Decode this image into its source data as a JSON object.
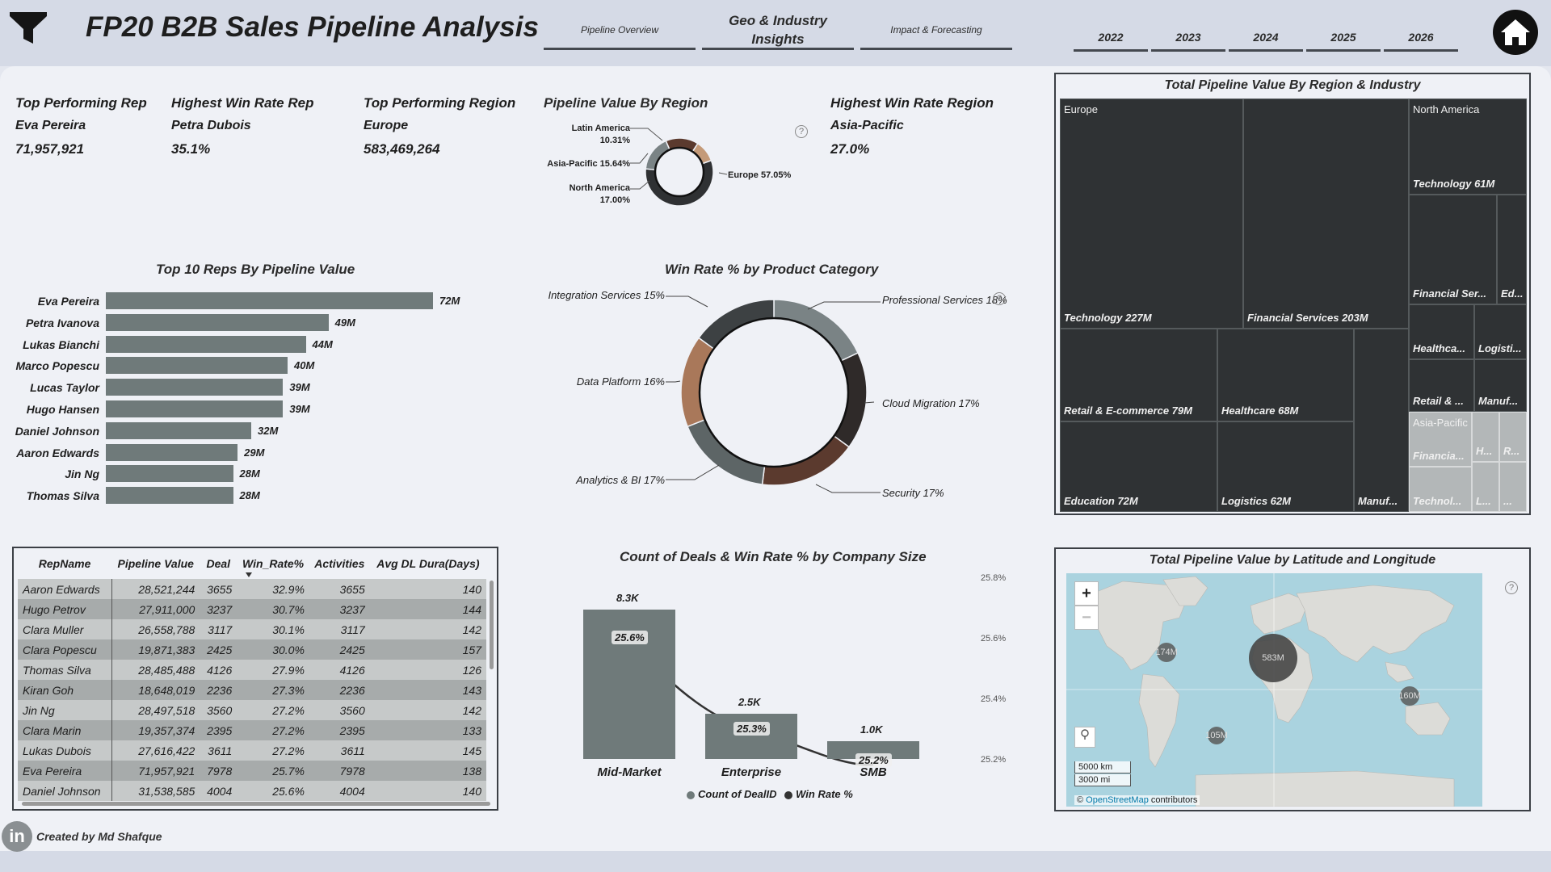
{
  "header": {
    "title": "FP20 B2B Sales Pipeline Analysis",
    "nav_tabs": [
      {
        "label": "Pipeline Overview"
      },
      {
        "label": "Geo & Industry Insights"
      },
      {
        "label": "Impact & Forecasting"
      }
    ],
    "years": [
      "2022",
      "2023",
      "2024",
      "2025",
      "2026"
    ]
  },
  "kpis": {
    "top_rep": {
      "title": "Top Performing Rep",
      "name": "Eva Pereira",
      "value": "71,957,921"
    },
    "win_rep": {
      "title": "Highest Win Rate Rep",
      "name": "Petra Dubois",
      "value": "35.1%"
    },
    "top_region": {
      "title": "Top Performing Region",
      "name": "Europe",
      "value": "583,469,264"
    },
    "win_region": {
      "title": "Highest Win Rate Region",
      "name": "Asia-Pacific",
      "value": "27.0%"
    }
  },
  "region_donut": {
    "title": "Pipeline Value By Region",
    "slices": [
      {
        "label": "Europe 57.05%",
        "value": 57.05,
        "color": "#2f3133"
      },
      {
        "label": "North America\n17.00%",
        "value": 17.0,
        "color": "#7a8385"
      },
      {
        "label": "Asia-Pacific 15.64%",
        "value": 15.64,
        "color": "#5b3a2e"
      },
      {
        "label": "Latin America\n10.31%",
        "value": 10.31,
        "color": "#c49a78"
      }
    ]
  },
  "top_reps_title": "Top 10 Reps By Pipeline Value",
  "chart_data": [
    {
      "type": "bar",
      "orientation": "horizontal",
      "title": "Top 10 Reps By Pipeline Value",
      "categories": [
        "Eva Pereira",
        "Petra Ivanova",
        "Lukas Bianchi",
        "Marco Popescu",
        "Lucas Taylor",
        "Hugo Hansen",
        "Daniel Johnson",
        "Aaron Edwards",
        "Jin Ng",
        "Thomas Silva"
      ],
      "values": [
        72,
        49,
        44,
        40,
        39,
        39,
        32,
        29,
        28,
        28
      ],
      "labels": [
        "72M",
        "49M",
        "44M",
        "40M",
        "39M",
        "39M",
        "32M",
        "29M",
        "28M",
        "28M"
      ]
    },
    {
      "type": "pie",
      "title": "Win Rate % by Product Category",
      "slices": [
        {
          "label": "Professional Services 18%",
          "value": 18,
          "color": "#7a8385"
        },
        {
          "label": "Cloud Migration 17%",
          "value": 17,
          "color": "#2f2a29"
        },
        {
          "label": "Security 17%",
          "value": 17,
          "color": "#5b3a2e"
        },
        {
          "label": "Analytics & BI 17%",
          "value": 17,
          "color": "#5d6566"
        },
        {
          "label": "Data Platform 16%",
          "value": 16,
          "color": "#a9785a"
        },
        {
          "label": "Integration Services 15%",
          "value": 15,
          "color": "#3d4143"
        }
      ]
    },
    {
      "type": "bar",
      "title": "Count of Deals & Win Rate % by Company Size",
      "categories": [
        "Mid-Market",
        "Enterprise",
        "SMB"
      ],
      "series": [
        {
          "name": "Count of DealID",
          "values": [
            8300,
            2500,
            1000
          ],
          "labels": [
            "8.3K",
            "2.5K",
            "1.0K"
          ],
          "color": "#6f7a7a"
        },
        {
          "name": "Win Rate %",
          "type": "line",
          "values": [
            25.6,
            25.3,
            25.2
          ],
          "labels": [
            "25.6%",
            "25.3%",
            "25.2%"
          ],
          "color": "#333333"
        }
      ],
      "y2_ticks": [
        "25.8%",
        "25.6%",
        "25.4%",
        "25.2%"
      ],
      "legend": "bottom"
    }
  ],
  "product_title": "Win Rate % by Product Category",
  "company_title": "Count of Deals & Win Rate % by Company Size",
  "company_legend": [
    "Count of DealID",
    "Win Rate %"
  ],
  "table": {
    "columns": [
      "RepName",
      "Pipeline Value",
      "Deal",
      "Win_Rate%",
      "Activities",
      "Avg DL Dura(Days)"
    ],
    "rows": [
      [
        "Aaron Edwards",
        "28,521,244",
        "3655",
        "32.9%",
        "3655",
        "140"
      ],
      [
        "Hugo Petrov",
        "27,911,000",
        "3237",
        "30.7%",
        "3237",
        "144"
      ],
      [
        "Clara Muller",
        "26,558,788",
        "3117",
        "30.1%",
        "3117",
        "142"
      ],
      [
        "Clara Popescu",
        "19,871,383",
        "2425",
        "30.0%",
        "2425",
        "157"
      ],
      [
        "Thomas Silva",
        "28,485,488",
        "4126",
        "27.9%",
        "4126",
        "126"
      ],
      [
        "Kiran Goh",
        "18,648,019",
        "2236",
        "27.3%",
        "2236",
        "143"
      ],
      [
        "Jin Ng",
        "28,497,518",
        "3560",
        "27.2%",
        "3560",
        "142"
      ],
      [
        "Clara Marin",
        "19,357,374",
        "2395",
        "27.2%",
        "2395",
        "133"
      ],
      [
        "Lukas Dubois",
        "27,616,422",
        "3611",
        "27.2%",
        "3611",
        "145"
      ],
      [
        "Eva Pereira",
        "71,957,921",
        "7978",
        "25.7%",
        "7978",
        "138"
      ],
      [
        "Daniel Johnson",
        "31,538,585",
        "4004",
        "25.6%",
        "4004",
        "140"
      ]
    ]
  },
  "treemap": {
    "title": "Total Pipeline Value By Region & Industry",
    "regions": [
      "Europe",
      "North America",
      "Asia-Pacific"
    ],
    "cells": [
      {
        "label": "Technology 227M"
      },
      {
        "label": "Financial Services 203M"
      },
      {
        "label": "Retail & E-commerce 79M"
      },
      {
        "label": "Healthcare 68M"
      },
      {
        "label": "Education 72M"
      },
      {
        "label": "Logistics 62M"
      },
      {
        "label": "Manuf..."
      },
      {
        "label": "Technology 61M"
      },
      {
        "label": "Financial Ser..."
      },
      {
        "label": "Ed..."
      },
      {
        "label": "Healthca..."
      },
      {
        "label": "Logisti..."
      },
      {
        "label": "Retail & ..."
      },
      {
        "label": "Manuf..."
      },
      {
        "label": "Financia..."
      },
      {
        "label": "Technol..."
      },
      {
        "label": "H..."
      },
      {
        "label": "R..."
      },
      {
        "label": "L..."
      },
      {
        "label": "..."
      }
    ]
  },
  "map": {
    "title": "Total Pipeline Value by Latitude and Longitude",
    "bubbles": [
      {
        "label": "174M"
      },
      {
        "label": "583M"
      },
      {
        "label": "160M"
      },
      {
        "label": "105M"
      }
    ],
    "scale_km": "5000 km",
    "scale_mi": "3000 mi",
    "attribution_prefix": "©",
    "attribution_link": "OpenStreetMap",
    "attribution_suffix": "contributors"
  },
  "footer": {
    "credit": "Created by Md Shafque",
    "linkedin": "in"
  },
  "colors": {
    "bar": "#6f7a7a",
    "dark": "#2f3234",
    "header_bg": "#d5dae6",
    "map_water": "#aad3df"
  }
}
